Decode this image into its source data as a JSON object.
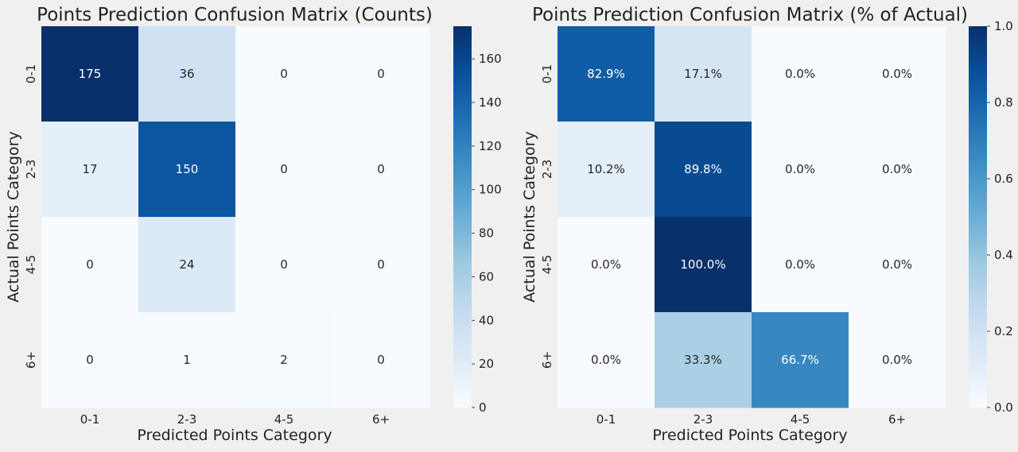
{
  "chart_data": [
    {
      "type": "heatmap",
      "title": "Points Prediction Confusion Matrix (Counts)",
      "xlabel": "Predicted Points Category",
      "ylabel": "Actual Points Category",
      "x_categories": [
        "0-1",
        "2-3",
        "4-5",
        "6+"
      ],
      "y_categories": [
        "0-1",
        "2-3",
        "4-5",
        "6+"
      ],
      "values": [
        [
          175,
          36,
          0,
          0
        ],
        [
          17,
          150,
          0,
          0
        ],
        [
          0,
          24,
          0,
          0
        ],
        [
          0,
          1,
          2,
          0
        ]
      ],
      "cell_labels": [
        [
          "175",
          "36",
          "0",
          "0"
        ],
        [
          "17",
          "150",
          "0",
          "0"
        ],
        [
          "0",
          "24",
          "0",
          "0"
        ],
        [
          "0",
          "1",
          "2",
          "0"
        ]
      ],
      "colormap": "Blues",
      "vmin": 0,
      "vmax": 175,
      "colorbar_ticks": [
        0,
        20,
        40,
        60,
        80,
        100,
        120,
        140,
        160
      ],
      "colorbar_tick_labels": [
        "0",
        "20",
        "40",
        "60",
        "80",
        "100",
        "120",
        "140",
        "160"
      ]
    },
    {
      "type": "heatmap",
      "title": "Points Prediction Confusion Matrix (% of Actual)",
      "xlabel": "Predicted Points Category",
      "ylabel": "Actual Points Category",
      "x_categories": [
        "0-1",
        "2-3",
        "4-5",
        "6+"
      ],
      "y_categories": [
        "0-1",
        "2-3",
        "4-5",
        "6+"
      ],
      "values": [
        [
          0.829,
          0.171,
          0.0,
          0.0
        ],
        [
          0.102,
          0.898,
          0.0,
          0.0
        ],
        [
          0.0,
          1.0,
          0.0,
          0.0
        ],
        [
          0.0,
          0.333,
          0.667,
          0.0
        ]
      ],
      "cell_labels": [
        [
          "82.9%",
          "17.1%",
          "0.0%",
          "0.0%"
        ],
        [
          "10.2%",
          "89.8%",
          "0.0%",
          "0.0%"
        ],
        [
          "0.0%",
          "100.0%",
          "0.0%",
          "0.0%"
        ],
        [
          "0.0%",
          "33.3%",
          "66.7%",
          "0.0%"
        ]
      ],
      "colormap": "Blues",
      "vmin": 0,
      "vmax": 1,
      "colorbar_ticks": [
        0,
        0.2,
        0.4,
        0.6,
        0.8,
        1.0
      ],
      "colorbar_tick_labels": [
        "0.0",
        "0.2",
        "0.4",
        "0.6",
        "0.8",
        "1.0"
      ]
    }
  ]
}
